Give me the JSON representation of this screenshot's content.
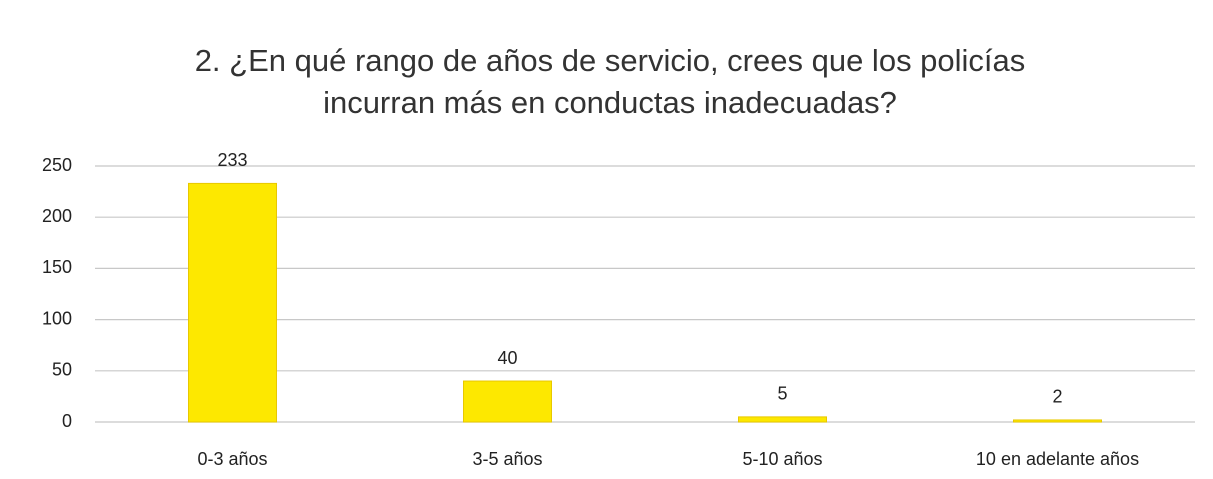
{
  "chart_data": {
    "type": "bar",
    "title": "2. ¿En qué rango de años de servicio, crees que los policías incurran más en conductas inadecuadas?",
    "categories": [
      "0-3 años",
      "3-5 años",
      "5-10 años",
      "10 en adelante años"
    ],
    "values": [
      233,
      40,
      5,
      2
    ],
    "color": "#fde800",
    "ylim": [
      0,
      250
    ],
    "yticks": [
      0,
      50,
      100,
      150,
      200,
      250
    ],
    "grid": true
  }
}
